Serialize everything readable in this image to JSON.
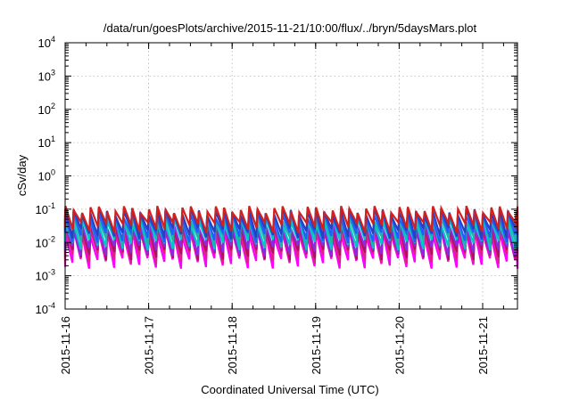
{
  "chart_data": {
    "type": "line",
    "title": "/data/run/goesPlots/archive/2015-11-21/10:00/flux/../bryn/5daysMars.plot",
    "xlabel": "Coordinated Universal Time (UTC)",
    "ylabel": "cSv/day",
    "y_scale": "log",
    "ylim": [
      0.0001,
      10000
    ],
    "xlim": [
      "2015-11-16T00:00",
      "2015-11-21T10:00"
    ],
    "grid": true,
    "legend": "none",
    "x_ticks": [
      "2015-11-16",
      "2015-11-17",
      "2015-11-18",
      "2015-11-19",
      "2015-11-20",
      "2015-11-21"
    ],
    "y_ticks": [
      {
        "base": "10",
        "exp": "-4"
      },
      {
        "base": "10",
        "exp": "-3"
      },
      {
        "base": "10",
        "exp": "-2"
      },
      {
        "base": "10",
        "exp": "-1"
      },
      {
        "base": "10",
        "exp": "0"
      },
      {
        "base": "10",
        "exp": "1"
      },
      {
        "base": "10",
        "exp": "2"
      },
      {
        "base": "10",
        "exp": "3"
      },
      {
        "base": "10",
        "exp": "4"
      }
    ],
    "pattern": {
      "period_hours": 2.4,
      "rise_hours": 0.3,
      "description_values": "sawtooth between peak and trough per series"
    },
    "series": [
      {
        "color": "#ff00ff",
        "peak": 0.02,
        "trough": 0.0025
      },
      {
        "color": "#e0208a",
        "peak": 0.025,
        "trough": 0.0035
      },
      {
        "color": "#b01060",
        "peak": 0.03,
        "trough": 0.0045
      },
      {
        "color": "#8a2be2",
        "peak": 0.035,
        "trough": 0.006
      },
      {
        "color": "#00c8c8",
        "peak": 0.045,
        "trough": 0.009
      },
      {
        "color": "#20b2aa",
        "peak": 0.055,
        "trough": 0.012
      },
      {
        "color": "#1f5fff",
        "peak": 0.07,
        "trough": 0.015
      },
      {
        "color": "#2a3fbf",
        "peak": 0.085,
        "trough": 0.02
      },
      {
        "color": "#d02020",
        "peak": 0.1,
        "trough": 0.03
      }
    ]
  }
}
